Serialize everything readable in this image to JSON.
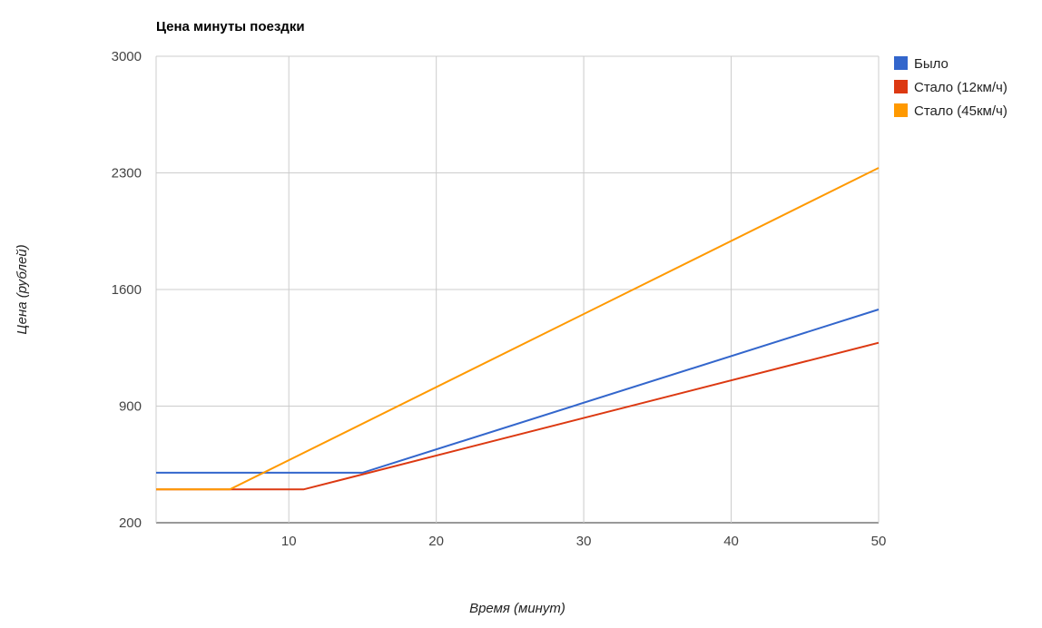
{
  "chart_data": {
    "type": "line",
    "title": "Цена минуты поездки",
    "xlabel": "Время (минут)",
    "ylabel": "Цена (рублей)",
    "xlim": [
      1,
      50
    ],
    "ylim": [
      200,
      3000
    ],
    "x_ticks": [
      10,
      20,
      30,
      40,
      50
    ],
    "y_ticks": [
      200,
      900,
      1600,
      2300,
      3000
    ],
    "grid": true,
    "legend_position": "right",
    "series": [
      {
        "name": "Было",
        "color": "#3366cc",
        "points": [
          [
            1,
            500
          ],
          [
            15,
            500
          ],
          [
            50,
            1480
          ]
        ]
      },
      {
        "name": "Стало (12км/ч)",
        "color": "#dc3912",
        "points": [
          [
            1,
            400
          ],
          [
            11,
            400
          ],
          [
            50,
            1280
          ]
        ]
      },
      {
        "name": "Стало (45км/ч)",
        "color": "#ff9900",
        "points": [
          [
            1,
            400
          ],
          [
            6,
            400
          ],
          [
            50,
            2330
          ]
        ]
      }
    ]
  }
}
